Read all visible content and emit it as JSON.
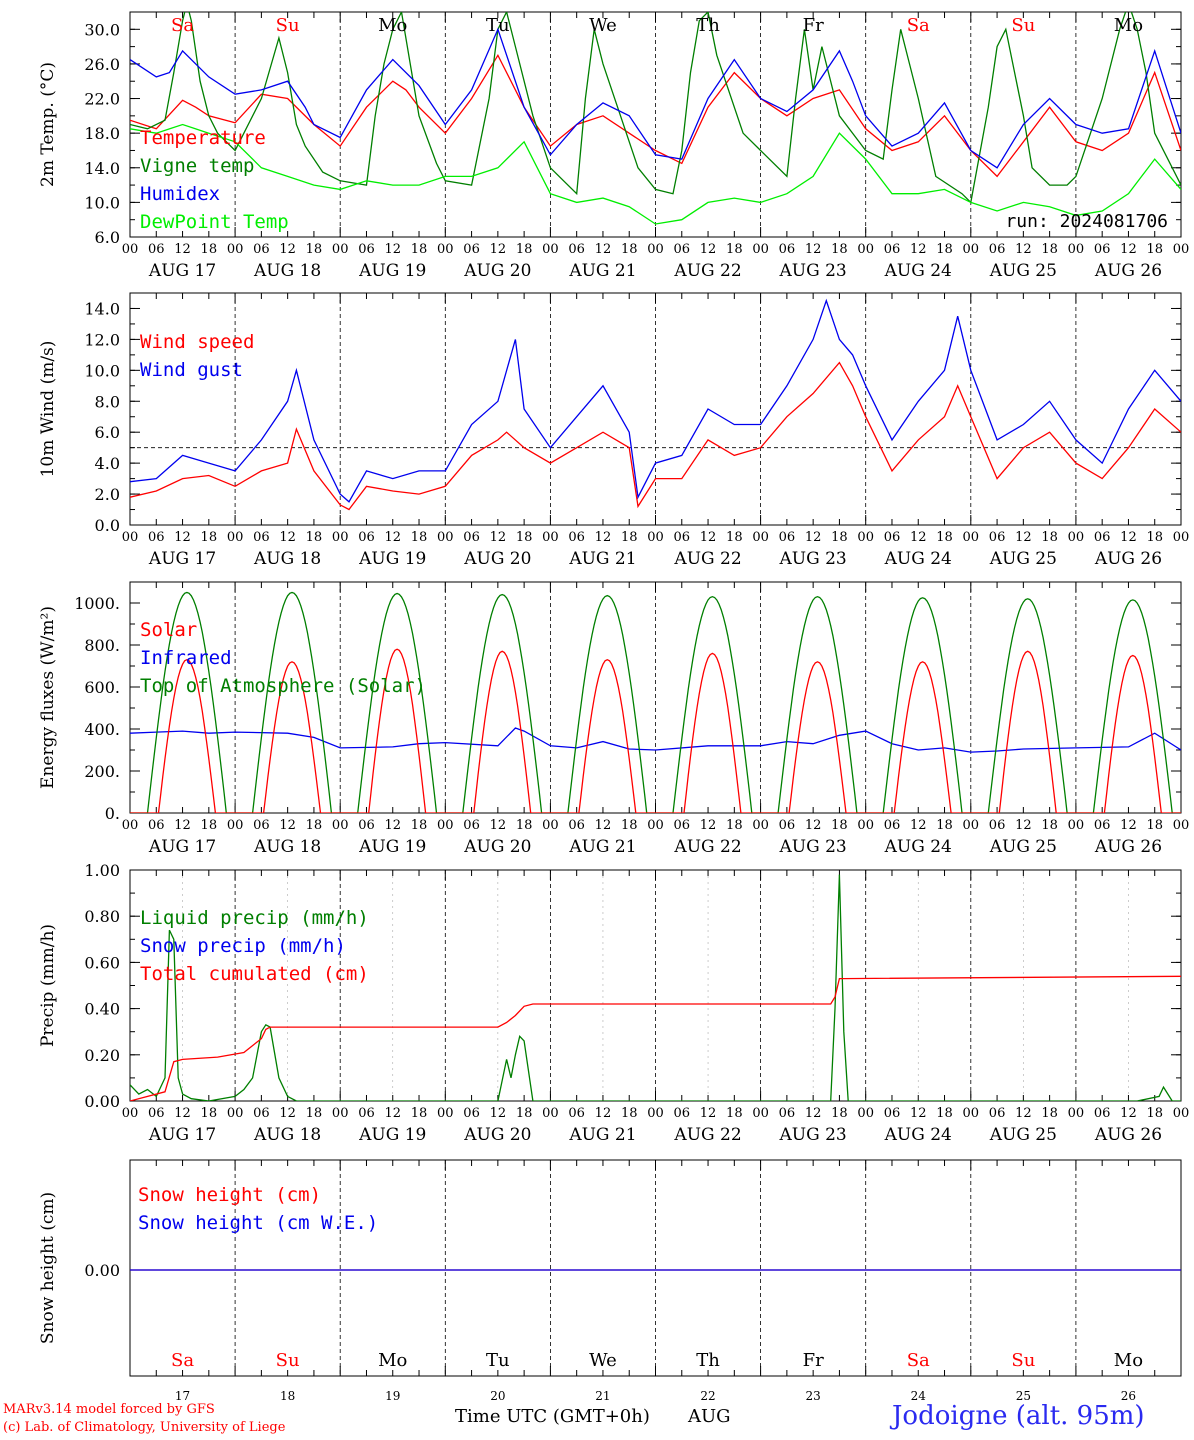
{
  "chart_data": [
    {
      "type": "line",
      "ylabel": "2m Temp. (°C)",
      "ylim": [
        6.0,
        32.0
      ],
      "yticks": [
        "6.0",
        "10.0",
        "14.0",
        "18.0",
        "22.0",
        "26.0",
        "30.0"
      ],
      "ytick_values": [
        6,
        10,
        14,
        18,
        22,
        26,
        30
      ],
      "legend": [
        "Temperature",
        "Vigne temp",
        "Humidex",
        "DewPoint Temp"
      ],
      "annotation": "run: 2024081706",
      "series": [
        {
          "name": "Temperature",
          "color": "#ff0000",
          "x": [
            0,
            6,
            12,
            15,
            18,
            24,
            30,
            36,
            42,
            48,
            54,
            60,
            63,
            66,
            72,
            78,
            84,
            90,
            96,
            102,
            108,
            114,
            120,
            126,
            132,
            138,
            144,
            150,
            156,
            162,
            168,
            174,
            180,
            186,
            192,
            198,
            204,
            210,
            216,
            222,
            228,
            234,
            240
          ],
          "y": [
            19.5,
            18.5,
            21.8,
            21.0,
            20.0,
            19.2,
            22.5,
            22.0,
            19.0,
            16.5,
            21.0,
            24.0,
            23.0,
            21.0,
            18.0,
            22.0,
            27.0,
            21.0,
            16.5,
            19.0,
            20.0,
            18.0,
            16.0,
            14.5,
            21.0,
            25.0,
            22.0,
            20.0,
            22.0,
            23.0,
            18.5,
            16.0,
            17.0,
            20.0,
            16.0,
            13.0,
            17.0,
            21.0,
            17.0,
            16.0,
            18.0,
            25.0,
            16.0
          ]
        },
        {
          "name": "Vigne temp",
          "color": "#007f00",
          "x": [
            0,
            4,
            8,
            10,
            12,
            13,
            14,
            16,
            18,
            20,
            24,
            30,
            34,
            36,
            38,
            40,
            44,
            48,
            54,
            56,
            58,
            60,
            62,
            66,
            70,
            72,
            78,
            82,
            84,
            86,
            88,
            92,
            96,
            100,
            102,
            104,
            106,
            108,
            112,
            116,
            120,
            124,
            126,
            128,
            130,
            132,
            134,
            140,
            144,
            150,
            152,
            154,
            156,
            158,
            162,
            168,
            172,
            174,
            176,
            178,
            180,
            184,
            190,
            192,
            196,
            198,
            200,
            204,
            206,
            210,
            214,
            216,
            222,
            226,
            228,
            230,
            232,
            234,
            240
          ],
          "y": [
            19.0,
            18.5,
            19.5,
            25.0,
            31.0,
            33.0,
            31.0,
            24.0,
            20.0,
            18.0,
            16.0,
            22.0,
            29.0,
            25.0,
            19.0,
            16.5,
            13.5,
            12.5,
            12.0,
            20.0,
            26.0,
            30.0,
            32.0,
            20.0,
            14.5,
            12.5,
            12.0,
            22.0,
            30.0,
            32.0,
            28.0,
            20.0,
            14.0,
            12.0,
            11.0,
            22.0,
            30.0,
            26.0,
            20.0,
            14.0,
            11.5,
            11.0,
            16.0,
            25.0,
            31.0,
            32.0,
            27.0,
            18.0,
            16.0,
            13.0,
            22.0,
            30.0,
            23.0,
            28.0,
            20.0,
            16.0,
            15.0,
            23.0,
            30.0,
            26.0,
            22.0,
            13.0,
            11.0,
            10.0,
            21.0,
            28.0,
            30.0,
            20.0,
            14.0,
            12.0,
            12.0,
            13.0,
            22.0,
            30.0,
            33.0,
            30.0,
            25.0,
            18.0,
            12.0
          ]
        },
        {
          "name": "Humidex",
          "color": "#0000ee",
          "x": [
            0,
            6,
            9,
            12,
            15,
            18,
            24,
            30,
            36,
            40,
            42,
            48,
            54,
            60,
            66,
            72,
            78,
            84,
            90,
            96,
            102,
            108,
            114,
            120,
            126,
            132,
            138,
            144,
            150,
            156,
            162,
            165,
            168,
            174,
            180,
            186,
            192,
            198,
            204,
            210,
            216,
            222,
            228,
            234,
            240
          ],
          "y": [
            26.5,
            24.5,
            25.0,
            27.5,
            26.0,
            24.5,
            22.5,
            23.0,
            24.0,
            21.0,
            19.0,
            17.5,
            23.0,
            26.5,
            23.5,
            19.0,
            23.0,
            30.0,
            21.0,
            15.5,
            19.0,
            21.5,
            20.0,
            15.5,
            15.0,
            22.0,
            26.5,
            22.0,
            20.5,
            23.0,
            27.5,
            24.0,
            20.0,
            16.5,
            18.0,
            21.5,
            16.0,
            14.0,
            19.0,
            22.0,
            19.0,
            18.0,
            18.5,
            27.5,
            18.0
          ]
        },
        {
          "name": "DewPoint Temp",
          "color": "#00ee00",
          "x": [
            0,
            6,
            12,
            18,
            24,
            30,
            36,
            42,
            48,
            54,
            60,
            66,
            72,
            78,
            84,
            90,
            96,
            102,
            108,
            114,
            120,
            126,
            132,
            138,
            144,
            150,
            156,
            162,
            168,
            174,
            180,
            186,
            192,
            198,
            204,
            210,
            216,
            222,
            228,
            234,
            240
          ],
          "y": [
            18.5,
            18.0,
            19.0,
            18.0,
            17.0,
            14.0,
            13.0,
            12.0,
            11.5,
            12.5,
            12.0,
            12.0,
            13.0,
            13.0,
            14.0,
            17.0,
            11.0,
            10.0,
            10.5,
            9.5,
            7.5,
            8.0,
            10.0,
            10.5,
            10.0,
            11.0,
            13.0,
            18.0,
            15.0,
            11.0,
            11.0,
            11.5,
            10.0,
            9.0,
            10.0,
            9.5,
            8.5,
            9.0,
            11.0,
            15.0,
            11.5
          ]
        }
      ]
    },
    {
      "type": "line",
      "ylabel": "10m Wind (m/s)",
      "ylim": [
        0.0,
        15.0
      ],
      "yticks": [
        "0.0",
        "2.0",
        "4.0",
        "6.0",
        "8.0",
        "10.0",
        "12.0",
        "14.0"
      ],
      "ytick_values": [
        0,
        2,
        4,
        6,
        8,
        10,
        12,
        14
      ],
      "reference_line": 5.0,
      "legend": [
        "Wind speed",
        "Wind gust"
      ],
      "series": [
        {
          "name": "Wind speed",
          "color": "#ff0000",
          "x": [
            0,
            6,
            12,
            18,
            24,
            30,
            36,
            38,
            42,
            48,
            50,
            54,
            60,
            66,
            72,
            78,
            84,
            86,
            90,
            96,
            102,
            108,
            114,
            116,
            120,
            126,
            132,
            138,
            144,
            150,
            156,
            162,
            165,
            168,
            174,
            180,
            186,
            189,
            192,
            198,
            204,
            210,
            216,
            222,
            228,
            234,
            240
          ],
          "y": [
            1.8,
            2.2,
            3.0,
            3.2,
            2.5,
            3.5,
            4.0,
            6.2,
            3.5,
            1.3,
            1.0,
            2.5,
            2.2,
            2.0,
            2.5,
            4.5,
            5.5,
            6.0,
            5.0,
            4.0,
            5.0,
            6.0,
            5.0,
            1.2,
            3.0,
            3.0,
            5.5,
            4.5,
            5.0,
            7.0,
            8.5,
            10.5,
            9.0,
            7.0,
            3.5,
            5.5,
            7.0,
            9.0,
            7.0,
            3.0,
            5.0,
            6.0,
            4.0,
            3.0,
            5.0,
            7.5,
            6.0
          ]
        },
        {
          "name": "Wind gust",
          "color": "#0000ee",
          "x": [
            0,
            6,
            12,
            18,
            24,
            30,
            36,
            38,
            42,
            48,
            50,
            54,
            60,
            66,
            72,
            78,
            84,
            88,
            90,
            96,
            102,
            108,
            114,
            116,
            120,
            126,
            132,
            138,
            144,
            150,
            156,
            159,
            162,
            165,
            168,
            174,
            180,
            186,
            189,
            192,
            198,
            204,
            210,
            216,
            222,
            228,
            234,
            240
          ],
          "y": [
            2.8,
            3.0,
            4.5,
            4.0,
            3.5,
            5.5,
            8.0,
            10.0,
            5.5,
            2.0,
            1.5,
            3.5,
            3.0,
            3.5,
            3.5,
            6.5,
            8.0,
            12.0,
            7.5,
            5.0,
            7.0,
            9.0,
            6.0,
            1.8,
            4.0,
            4.5,
            7.5,
            6.5,
            6.5,
            9.0,
            12.0,
            14.5,
            12.0,
            11.0,
            9.0,
            5.5,
            8.0,
            10.0,
            13.5,
            10.0,
            5.5,
            6.5,
            8.0,
            5.5,
            4.0,
            7.5,
            10.0,
            8.0
          ]
        }
      ]
    },
    {
      "type": "line",
      "ylabel": "Energy fluxes (W/m²)",
      "ylim": [
        0,
        1100
      ],
      "yticks": [
        "0.",
        "200.",
        "400.",
        "600.",
        "800.",
        "1000."
      ],
      "ytick_values": [
        0,
        200,
        400,
        600,
        800,
        1000
      ],
      "legend": [
        "Solar",
        "Infrared",
        "Top of Atmosphere (Solar)"
      ],
      "daily_peak_toa": [
        1050,
        1050,
        1045,
        1040,
        1035,
        1030,
        1030,
        1025,
        1020,
        1015
      ],
      "daily_peak_solar": [
        730,
        720,
        780,
        770,
        730,
        760,
        720,
        720,
        770,
        750
      ],
      "series": [
        {
          "name": "Infrared",
          "color": "#0000ee",
          "x": [
            0,
            6,
            12,
            18,
            24,
            36,
            42,
            48,
            60,
            66,
            72,
            84,
            88,
            90,
            96,
            102,
            108,
            114,
            120,
            132,
            144,
            150,
            156,
            162,
            168,
            174,
            180,
            186,
            192,
            198,
            204,
            216,
            228,
            234,
            240
          ],
          "y": [
            380,
            385,
            390,
            380,
            385,
            380,
            360,
            310,
            315,
            330,
            335,
            320,
            405,
            390,
            320,
            310,
            340,
            305,
            300,
            320,
            320,
            340,
            330,
            370,
            390,
            330,
            300,
            310,
            290,
            295,
            305,
            310,
            315,
            380,
            300
          ]
        }
      ]
    },
    {
      "type": "line",
      "ylabel": "Precip (mm/h)",
      "ylim": [
        0.0,
        1.0
      ],
      "yticks": [
        "0.00",
        "0.20",
        "0.40",
        "0.60",
        "0.80",
        "1.00"
      ],
      "ytick_values": [
        0,
        0.2,
        0.4,
        0.6,
        0.8,
        1.0
      ],
      "legend": [
        "Liquid precip (mm/h)",
        "Snow precip (mm/h)",
        "Total cumulated (cm)"
      ],
      "series": [
        {
          "name": "Liquid precip (mm/h)",
          "color": "#007f00",
          "x": [
            0,
            2,
            4,
            6,
            8,
            9,
            10,
            11,
            12,
            14,
            18,
            24,
            26,
            28,
            30,
            31,
            32,
            34,
            36,
            38,
            84,
            86,
            87,
            88,
            89,
            90,
            92,
            148,
            160,
            161,
            162,
            163,
            164,
            165,
            166,
            230,
            235,
            236,
            238,
            240
          ],
          "y": [
            0.07,
            0.03,
            0.05,
            0.02,
            0.1,
            0.74,
            0.7,
            0.1,
            0.03,
            0.01,
            0.0,
            0.02,
            0.05,
            0.1,
            0.3,
            0.33,
            0.32,
            0.1,
            0.02,
            0.0,
            0.0,
            0.18,
            0.1,
            0.2,
            0.28,
            0.26,
            0.0,
            0.0,
            0.0,
            0.4,
            0.98,
            0.3,
            0.0,
            0.0,
            0.0,
            0.0,
            0.02,
            0.06,
            0.0,
            0.0
          ]
        },
        {
          "name": "Total cumulated (cm)",
          "color": "#ff0000",
          "x": [
            0,
            8,
            10,
            12,
            20,
            26,
            30,
            31,
            32,
            84,
            86,
            88,
            90,
            92,
            160,
            161,
            162,
            163,
            240
          ],
          "y": [
            0.0,
            0.04,
            0.17,
            0.18,
            0.19,
            0.21,
            0.27,
            0.31,
            0.32,
            0.32,
            0.34,
            0.37,
            0.41,
            0.42,
            0.42,
            0.45,
            0.53,
            0.53,
            0.54
          ]
        }
      ]
    },
    {
      "type": "line",
      "ylabel": "Snow height (cm)",
      "yticks": [
        "0.00"
      ],
      "ytick_values": [
        0
      ],
      "legend": [
        "Snow height (cm)",
        "Snow height (cm W.E.)"
      ],
      "series": [
        {
          "name": "Snow height (cm)",
          "color": "#ff0000",
          "x": [
            0,
            240
          ],
          "y": [
            0,
            0
          ]
        },
        {
          "name": "Snow height (cm W.E.)",
          "color": "#0000ee",
          "x": [
            0,
            240
          ],
          "y": [
            0,
            0
          ]
        }
      ]
    }
  ],
  "x_axis": {
    "hour_ticks": [
      "00",
      "06",
      "12",
      "18"
    ],
    "final_tick": "00",
    "date_labels": [
      "AUG 17",
      "AUG 18",
      "AUG 19",
      "AUG 20",
      "AUG 21",
      "AUG 22",
      "AUG 23",
      "AUG 24",
      "AUG 25",
      "AUG 26"
    ],
    "day_names": [
      "Sa",
      "Su",
      "Mo",
      "Tu",
      "We",
      "Th",
      "Fr",
      "Sa",
      "Su",
      "Mo"
    ],
    "day_numbers": [
      "17",
      "18",
      "19",
      "20",
      "21",
      "22",
      "23",
      "24",
      "25",
      "26"
    ],
    "xlabel": "Time UTC (GMT+0h)",
    "month": "AUG"
  },
  "colors": {
    "temperature": "#ff0000",
    "vigne": "#007f00",
    "humidex": "#0000ee",
    "dewpoint": "#00ee00",
    "weekend": "#ff0000",
    "weekday": "#000000",
    "station": "#2a2af0",
    "credit": "#ff0000"
  },
  "footer": {
    "credit_line1": "MARv3.14 model forced by GFS",
    "credit_line2": "(c) Lab. of Climatology, University of Liege",
    "station": "Jodoigne (alt. 95m)"
  }
}
